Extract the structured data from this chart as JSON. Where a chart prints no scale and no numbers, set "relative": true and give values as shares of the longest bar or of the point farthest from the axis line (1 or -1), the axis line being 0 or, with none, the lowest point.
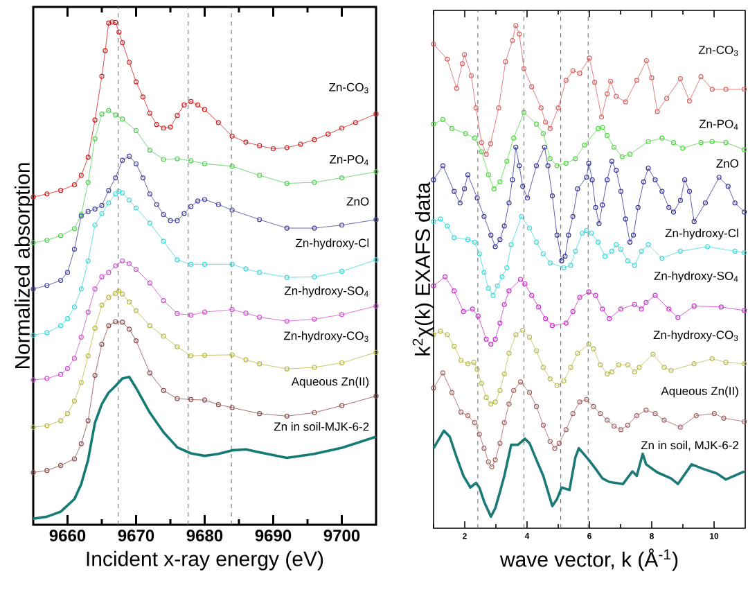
{
  "chart_data": [
    {
      "type": "line",
      "relative": true,
      "xlabel": "Incident x-ray energy (eV)",
      "ylabel": "Normalized absorption",
      "xlim": [
        9655,
        9705
      ],
      "xticks": [
        9660,
        {
          "value": 9665,
          "label": null
        },
        9670,
        {
          "value": 9675,
          "label": null
        },
        9680,
        {
          "value": 9685,
          "label": null
        },
        9690,
        {
          "value": 9695,
          "label": null
        },
        9700
      ],
      "marker": "circle",
      "line_style": "solid",
      "ref_lines": [
        {
          "axis": "x",
          "value": 9667.4,
          "line_style": "dashed"
        },
        {
          "axis": "x",
          "value": 9677.6,
          "line_style": "dashed"
        },
        {
          "axis": "x",
          "value": 9683.9,
          "line_style": "dashed"
        }
      ],
      "series": [
        {
          "name": "Zn-CO$_{3}$",
          "color": "#d02020",
          "x": [
            9655,
            9657,
            9659,
            9661,
            9662,
            9663,
            9664,
            9665,
            9665.5,
            9666,
            9666.5,
            9667,
            9667.5,
            9668,
            9669,
            9670,
            9671,
            9672,
            9673,
            9674,
            9675,
            9676,
            9677,
            9678,
            9679,
            9680,
            9682,
            9684,
            9686,
            9688,
            9690,
            9692,
            9694,
            9696,
            9698,
            9700,
            9702,
            9705
          ],
          "values": [
            0.652,
            0.658,
            0.665,
            0.676,
            0.695,
            0.731,
            0.805,
            0.892,
            0.943,
            0.998,
            1,
            0.999,
            0.98,
            0.959,
            0.92,
            0.881,
            0.851,
            0.819,
            0.796,
            0.789,
            0.791,
            0.814,
            0.835,
            0.842,
            0.835,
            0.826,
            0.8,
            0.773,
            0.761,
            0.754,
            0.748,
            0.75,
            0.757,
            0.766,
            0.777,
            0.789,
            0.8,
            0.817
          ]
        },
        {
          "name": "Zn-PO$_{4}$",
          "color": "#50d050",
          "x": [
            9655,
            9657,
            9659,
            9661,
            9662,
            9663,
            9664,
            9665,
            9666,
            9667,
            9668,
            9670,
            9672,
            9674,
            9676,
            9678,
            9680,
            9684,
            9688,
            9692,
            9696,
            9700,
            9705
          ],
          "values": [
            0.561,
            0.566,
            0.575,
            0.589,
            0.617,
            0.681,
            0.768,
            0.817,
            0.824,
            0.815,
            0.807,
            0.784,
            0.745,
            0.727,
            0.728,
            0.724,
            0.718,
            0.713,
            0.695,
            0.679,
            0.681,
            0.69,
            0.702
          ]
        },
        {
          "name": "ZnO",
          "color": "#4040a0",
          "x": [
            9655,
            9657,
            9659,
            9660,
            9661,
            9662,
            9663,
            9664,
            9665,
            9666,
            9667,
            9668,
            9669,
            9670,
            9671,
            9672,
            9673,
            9674,
            9675,
            9676,
            9677,
            9678,
            9679,
            9680,
            9682,
            9684,
            9688,
            9692,
            9696,
            9700,
            9705
          ],
          "values": [
            0.469,
            0.476,
            0.486,
            0.502,
            0.548,
            0.614,
            0.623,
            0.628,
            0.635,
            0.665,
            0.69,
            0.725,
            0.733,
            0.718,
            0.69,
            0.658,
            0.637,
            0.617,
            0.605,
            0.605,
            0.619,
            0.633,
            0.644,
            0.647,
            0.637,
            0.626,
            0.607,
            0.59,
            0.59,
            0.596,
            0.607
          ]
        },
        {
          "name": "Zn-hydroxy-Cl",
          "color": "#40d8d8",
          "x": [
            9655,
            9657,
            9659,
            9660,
            9661,
            9662,
            9663,
            9664,
            9665,
            9666,
            9667,
            9667.5,
            9668,
            9669,
            9670,
            9672,
            9674,
            9676,
            9678,
            9680,
            9684,
            9686,
            9688,
            9692,
            9696,
            9700,
            9705
          ],
          "values": [
            0.377,
            0.382,
            0.396,
            0.41,
            0.433,
            0.469,
            0.525,
            0.596,
            0.619,
            0.64,
            0.658,
            0.663,
            0.66,
            0.646,
            0.63,
            0.6,
            0.564,
            0.527,
            0.518,
            0.518,
            0.518,
            0.509,
            0.502,
            0.492,
            0.493,
            0.504,
            0.527
          ]
        },
        {
          "name": "Zn-hydroxy-SO$_{4}$",
          "color": "#d050d0",
          "x": [
            9655,
            9657,
            9659,
            9660,
            9661,
            9662,
            9663,
            9664,
            9665,
            9666,
            9667,
            9668,
            9669,
            9670,
            9672,
            9674,
            9676,
            9678,
            9680,
            9684,
            9686,
            9688,
            9692,
            9696,
            9700,
            9705
          ],
          "values": [
            0.288,
            0.291,
            0.299,
            0.311,
            0.331,
            0.373,
            0.423,
            0.469,
            0.493,
            0.502,
            0.515,
            0.525,
            0.519,
            0.508,
            0.481,
            0.446,
            0.42,
            0.417,
            0.423,
            0.428,
            0.421,
            0.413,
            0.405,
            0.409,
            0.418,
            0.435
          ]
        },
        {
          "name": "Zn-hydroxy-CO$_{3}$",
          "color": "#b8b840",
          "x": [
            9655,
            9657,
            9659,
            9660,
            9661,
            9662,
            9663,
            9664,
            9665,
            9666,
            9667,
            9667.5,
            9668,
            9669,
            9670,
            9672,
            9674,
            9676,
            9678,
            9680,
            9684,
            9686,
            9688,
            9692,
            9696,
            9700,
            9705
          ],
          "values": [
            0.194,
            0.197,
            0.207,
            0.221,
            0.246,
            0.283,
            0.336,
            0.391,
            0.437,
            0.452,
            0.46,
            0.465,
            0.459,
            0.443,
            0.426,
            0.396,
            0.375,
            0.354,
            0.336,
            0.337,
            0.338,
            0.328,
            0.32,
            0.31,
            0.313,
            0.322,
            0.343
          ]
        },
        {
          "name": "Aqueous Zn(II)",
          "color": "#8c4a4a",
          "x": [
            9655,
            9657,
            9659,
            9661,
            9662,
            9663,
            9664,
            9665,
            9666,
            9667,
            9668,
            9669,
            9670,
            9672,
            9674,
            9676,
            9678,
            9680,
            9682,
            9684,
            9688,
            9692,
            9696,
            9700,
            9705
          ],
          "values": [
            0.104,
            0.108,
            0.118,
            0.131,
            0.161,
            0.207,
            0.297,
            0.359,
            0.396,
            0.404,
            0.403,
            0.389,
            0.366,
            0.302,
            0.267,
            0.251,
            0.249,
            0.248,
            0.239,
            0.233,
            0.221,
            0.216,
            0.223,
            0.237,
            0.256
          ]
        },
        {
          "name": "Zn in soil-MJK-6-2",
          "color": "#137a74",
          "marker": "none",
          "x": [
            9655,
            9657,
            9659,
            9661,
            9662,
            9663,
            9664,
            9665,
            9666,
            9667,
            9668,
            9669,
            9670,
            9672,
            9674,
            9676,
            9678,
            9680,
            9682,
            9684,
            9686,
            9688,
            9692,
            9696,
            9700,
            9705
          ],
          "values": [
            0.012,
            0.016,
            0.026,
            0.051,
            0.081,
            0.129,
            0.203,
            0.24,
            0.263,
            0.276,
            0.291,
            0.294,
            0.272,
            0.223,
            0.184,
            0.154,
            0.142,
            0.137,
            0.141,
            0.148,
            0.15,
            0.144,
            0.133,
            0.141,
            0.153,
            0.175
          ]
        }
      ]
    },
    {
      "type": "line",
      "relative": true,
      "xlabel": "wave vector, k (Å$^{-1}$)",
      "ylabel": "k$^{2}$χ(k) EXAFS data",
      "xlim": [
        1,
        11
      ],
      "xticks": [
        {
          "value": 1,
          "label": null
        },
        2,
        {
          "value": 3,
          "label": null
        },
        4,
        {
          "value": 5,
          "label": null
        },
        6,
        {
          "value": 7,
          "label": null
        },
        8,
        {
          "value": 9,
          "label": null
        },
        10
      ],
      "marker": "circle",
      "line_style": "solid",
      "ref_lines": [
        {
          "axis": "x",
          "value": 2.42,
          "line_style": "dashed"
        },
        {
          "axis": "x",
          "value": 3.9,
          "line_style": "dashed"
        },
        {
          "axis": "x",
          "value": 5.08,
          "line_style": "dashed"
        },
        {
          "axis": "x",
          "value": 5.96,
          "line_style": "dashed"
        }
      ],
      "series": [
        {
          "name": "Zn-CO$_{3}$",
          "color": "#d86060",
          "x": [
            1.0,
            1.44,
            1.74,
            1.92,
            1.99,
            2.21,
            2.36,
            2.54,
            2.69,
            2.83,
            3.09,
            3.31,
            3.53,
            3.64,
            3.75,
            3.9,
            4.15,
            4.45,
            4.59,
            4.74,
            5.0,
            5.25,
            5.47,
            5.69,
            6.0,
            6.17,
            6.39,
            6.57,
            6.68,
            6.86,
            7.16,
            7.52,
            7.83,
            8.0,
            8.18,
            8.48,
            8.92,
            9.21,
            9.58,
            9.94,
            10.38,
            10.97
          ],
          "values": [
            0.963,
            0.933,
            0.875,
            0.924,
            0.942,
            0.9,
            0.836,
            0.767,
            0.744,
            0.765,
            0.836,
            0.928,
            0.97,
            1,
            0.983,
            0.914,
            0.878,
            0.836,
            0.808,
            0.795,
            0.836,
            0.891,
            0.91,
            0.905,
            0.935,
            0.887,
            0.818,
            0.864,
            0.889,
            0.859,
            0.848,
            0.891,
            0.93,
            0.896,
            0.829,
            0.855,
            0.894,
            0.85,
            0.898,
            0.873,
            0.873,
            0.873
          ]
        },
        {
          "name": "Zn-PO$_{4}$",
          "color": "#50d840",
          "x": [
            1.0,
            1.3,
            1.59,
            2.03,
            2.32,
            2.54,
            2.76,
            2.94,
            3.13,
            3.35,
            3.57,
            3.9,
            4.3,
            4.52,
            4.74,
            4.96,
            5.25,
            5.55,
            5.84,
            6.28,
            6.42,
            6.57,
            6.79,
            7.05,
            7.3,
            7.89,
            8.33,
            8.7,
            8.99,
            9.58,
            9.94,
            10.38,
            10.97
          ],
          "values": [
            0.804,
            0.813,
            0.795,
            0.785,
            0.776,
            0.749,
            0.703,
            0.675,
            0.689,
            0.73,
            0.776,
            0.827,
            0.804,
            0.785,
            0.735,
            0.721,
            0.726,
            0.735,
            0.762,
            0.795,
            0.797,
            0.781,
            0.758,
            0.739,
            0.744,
            0.769,
            0.776,
            0.767,
            0.756,
            0.767,
            0.769,
            0.767,
            0.753
          ]
        },
        {
          "name": "ZnO",
          "color": "#34349a",
          "x": [
            1.0,
            1.3,
            1.66,
            1.85,
            1.99,
            2.1,
            2.4,
            2.62,
            2.84,
            2.98,
            3.13,
            3.27,
            3.42,
            3.53,
            3.64,
            3.75,
            3.86,
            4.01,
            4.3,
            4.56,
            4.67,
            4.81,
            4.96,
            5.11,
            5.22,
            5.33,
            5.47,
            5.62,
            5.91,
            5.98,
            6.09,
            6.2,
            6.31,
            6.42,
            6.57,
            6.72,
            6.86,
            7.01,
            7.16,
            7.3,
            7.41,
            7.56,
            7.74,
            7.89,
            8.11,
            8.33,
            8.55,
            8.7,
            8.92,
            9.06,
            9.21,
            9.36,
            9.72,
            10.16,
            10.45,
            10.67,
            10.97
          ],
          "values": [
            0.693,
            0.721,
            0.67,
            0.647,
            0.675,
            0.703,
            0.657,
            0.62,
            0.583,
            0.56,
            0.574,
            0.601,
            0.647,
            0.693,
            0.758,
            0.721,
            0.68,
            0.657,
            0.721,
            0.758,
            0.721,
            0.661,
            0.583,
            0.532,
            0.541,
            0.583,
            0.62,
            0.675,
            0.698,
            0.726,
            0.693,
            0.638,
            0.606,
            0.643,
            0.693,
            0.73,
            0.712,
            0.67,
            0.615,
            0.569,
            0.583,
            0.638,
            0.689,
            0.716,
            0.693,
            0.67,
            0.638,
            0.629,
            0.652,
            0.693,
            0.67,
            0.61,
            0.647,
            0.698,
            0.68,
            0.647,
            0.629
          ]
        },
        {
          "name": "Zn-hydroxy-Cl",
          "color": "#40dada",
          "x": [
            1.0,
            1.22,
            1.44,
            1.66,
            2.1,
            2.32,
            2.47,
            2.62,
            2.76,
            2.91,
            3.05,
            3.2,
            3.35,
            3.49,
            3.82,
            4.08,
            4.3,
            4.52,
            4.74,
            5.18,
            5.4,
            5.55,
            5.77,
            5.91,
            6.06,
            6.28,
            6.5,
            6.72,
            6.86,
            7.01,
            7.23,
            7.45,
            7.67,
            7.89,
            8.33,
            8.92,
            9.79,
            10.67,
            10.97
          ],
          "values": [
            0.61,
            0.615,
            0.601,
            0.578,
            0.574,
            0.569,
            0.546,
            0.509,
            0.477,
            0.463,
            0.482,
            0.5,
            0.518,
            0.564,
            0.62,
            0.597,
            0.569,
            0.546,
            0.528,
            0.518,
            0.523,
            0.551,
            0.587,
            0.592,
            0.587,
            0.569,
            0.541,
            0.551,
            0.564,
            0.555,
            0.532,
            0.523,
            0.551,
            0.564,
            0.537,
            0.551,
            0.56,
            0.551,
            0.548
          ]
        },
        {
          "name": "Zn-hydroxy-SO$_{4}$",
          "color": "#cc30cc",
          "x": [
            1.0,
            1.37,
            1.66,
            1.96,
            2.25,
            2.43,
            2.69,
            2.84,
            2.98,
            3.13,
            3.27,
            3.42,
            3.79,
            3.93,
            4.15,
            4.37,
            4.59,
            4.81,
            5.25,
            5.47,
            5.69,
            5.98,
            6.2,
            6.42,
            6.64,
            7.01,
            7.45,
            7.67,
            7.82,
            8.11,
            8.55,
            8.84,
            9.36,
            10.23,
            10.97
          ],
          "values": [
            0.482,
            0.5,
            0.472,
            0.431,
            0.436,
            0.422,
            0.376,
            0.366,
            0.376,
            0.408,
            0.445,
            0.472,
            0.495,
            0.486,
            0.463,
            0.44,
            0.417,
            0.403,
            0.408,
            0.431,
            0.459,
            0.47,
            0.463,
            0.436,
            0.417,
            0.436,
            0.445,
            0.436,
            0.449,
            0.463,
            0.436,
            0.419,
            0.442,
            0.44,
            0.433
          ]
        },
        {
          "name": "Zn-hydroxy-CO$_{3}$",
          "color": "#baba50",
          "x": [
            1.0,
            1.22,
            1.44,
            1.66,
            1.88,
            2.1,
            2.29,
            2.4,
            2.54,
            2.69,
            2.84,
            2.98,
            3.13,
            3.27,
            3.42,
            3.64,
            3.86,
            4.08,
            4.3,
            4.52,
            4.74,
            4.96,
            5.18,
            5.4,
            5.62,
            5.98,
            6.13,
            6.35,
            6.57,
            6.72,
            6.94,
            7.23,
            7.45,
            7.6,
            8.04,
            8.4,
            8.62,
            9.36,
            9.94,
            10.38,
            10.97
          ],
          "values": [
            0.385,
            0.392,
            0.385,
            0.362,
            0.334,
            0.327,
            0.33,
            0.316,
            0.288,
            0.26,
            0.247,
            0.251,
            0.274,
            0.307,
            0.348,
            0.385,
            0.394,
            0.38,
            0.353,
            0.32,
            0.297,
            0.284,
            0.293,
            0.32,
            0.348,
            0.366,
            0.357,
            0.325,
            0.307,
            0.311,
            0.325,
            0.325,
            0.311,
            0.32,
            0.346,
            0.32,
            0.314,
            0.327,
            0.337,
            0.33,
            0.327
          ]
        },
        {
          "name": "Aqueous Zn(II)",
          "color": "#a46060",
          "x": [
            1.0,
            1.3,
            1.59,
            1.88,
            2.1,
            2.32,
            2.47,
            2.62,
            2.76,
            2.87,
            2.98,
            3.13,
            3.27,
            3.42,
            3.57,
            3.79,
            4.08,
            4.3,
            4.52,
            4.74,
            4.89,
            5.03,
            5.25,
            5.47,
            5.69,
            5.91,
            6.13,
            6.35,
            6.57,
            6.79,
            7.01,
            7.23,
            7.52,
            7.82,
            8.11,
            8.4,
            8.92,
            9.43,
            10.01,
            10.31,
            10.97
          ],
          "values": [
            0.279,
            0.309,
            0.27,
            0.231,
            0.224,
            0.21,
            0.187,
            0.159,
            0.132,
            0.122,
            0.136,
            0.169,
            0.21,
            0.247,
            0.274,
            0.291,
            0.27,
            0.242,
            0.205,
            0.173,
            0.159,
            0.169,
            0.196,
            0.228,
            0.251,
            0.256,
            0.242,
            0.228,
            0.215,
            0.203,
            0.196,
            0.205,
            0.224,
            0.235,
            0.228,
            0.215,
            0.201,
            0.224,
            0.228,
            0.219,
            0.212
          ]
        },
        {
          "name": "Zn in soil, MJK-6-2",
          "color": "#1a7a78",
          "marker": "none",
          "x": [
            1.0,
            1.33,
            1.52,
            1.74,
            1.96,
            2.18,
            2.36,
            2.47,
            2.62,
            2.84,
            2.98,
            3.13,
            3.27,
            3.49,
            3.71,
            3.93,
            4.08,
            4.3,
            4.52,
            4.81,
            4.96,
            5.11,
            5.36,
            5.55,
            5.66,
            5.98,
            6.2,
            6.42,
            6.64,
            6.86,
            7.08,
            7.38,
            7.52,
            7.71,
            7.82,
            8.18,
            8.62,
            8.84,
            9.28,
            9.65,
            10.09,
            10.38,
            10.97
          ],
          "values": [
            0.159,
            0.194,
            0.182,
            0.141,
            0.104,
            0.081,
            0.09,
            0.081,
            0.053,
            0.023,
            0.04,
            0.072,
            0.104,
            0.166,
            0.166,
            0.178,
            0.169,
            0.136,
            0.104,
            0.044,
            0.058,
            0.081,
            0.076,
            0.141,
            0.159,
            0.136,
            0.118,
            0.099,
            0.092,
            0.09,
            0.088,
            0.113,
            0.104,
            0.148,
            0.127,
            0.111,
            0.099,
            0.088,
            0.127,
            0.118,
            0.109,
            0.097,
            0.113
          ]
        }
      ]
    }
  ]
}
